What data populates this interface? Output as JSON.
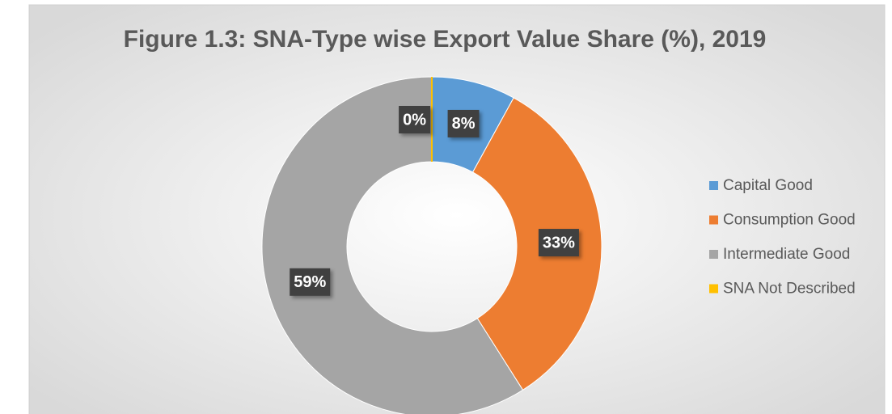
{
  "chart_data": {
    "type": "donut",
    "title": "Figure 1.3: SNA-Type wise Export Value Share (%), 2019",
    "categories": [
      "Capital Good",
      "Consumption Good",
      "Intermediate Good",
      "SNA Not Described"
    ],
    "values": [
      8,
      33,
      59,
      0
    ],
    "value_labels": [
      "8%",
      "33%",
      "59%",
      "0%"
    ],
    "colors": [
      "#5b9bd5",
      "#ed7d31",
      "#a5a5a5",
      "#ffc000"
    ],
    "legend": "right"
  }
}
